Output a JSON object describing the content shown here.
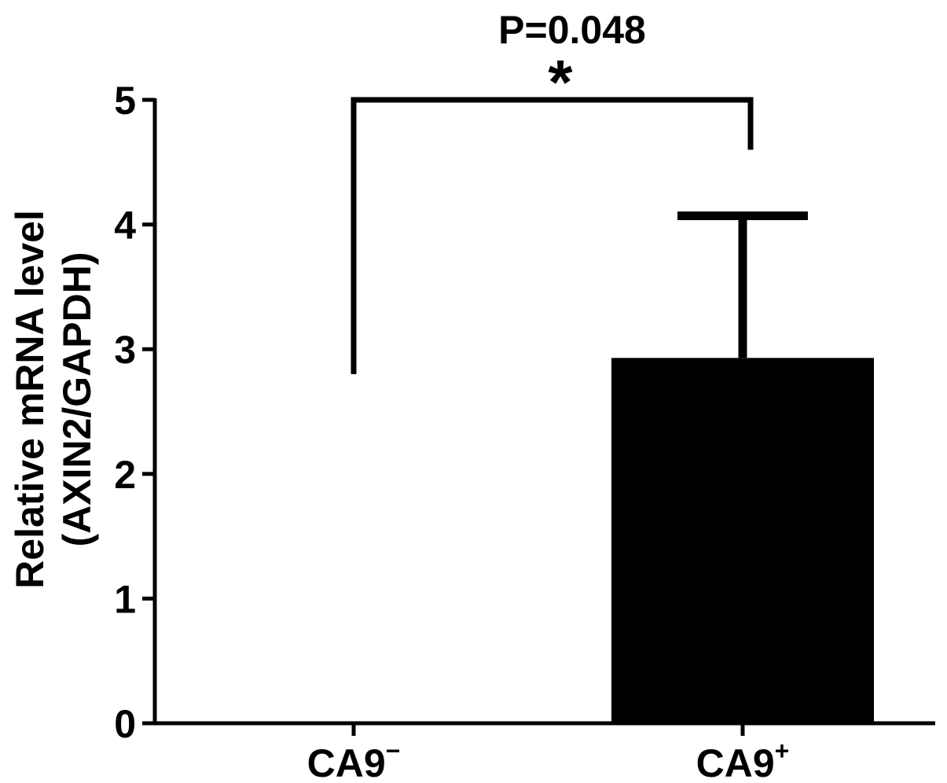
{
  "chart_data": {
    "type": "bar",
    "categories": [
      "CA9",
      "CA9"
    ],
    "category_superscripts": [
      "−",
      "+"
    ],
    "values": [
      0,
      2.93
    ],
    "error_upper": [
      null,
      4.07
    ],
    "ylabel_line1": "Relative mRNA level",
    "ylabel_line2": "(AXIN2/GAPDH)",
    "ylim": [
      0,
      5
    ],
    "yticks": [
      "0",
      "1",
      "2",
      "3",
      "4",
      "5"
    ],
    "bar_colors": [
      "#ffffff",
      "#000000"
    ],
    "grid": false,
    "legend": "none",
    "significance": {
      "p_text": "P=0.048",
      "marker": "*",
      "bracket_top": 5.0,
      "left_end": 2.8,
      "right_end": 4.6
    }
  }
}
